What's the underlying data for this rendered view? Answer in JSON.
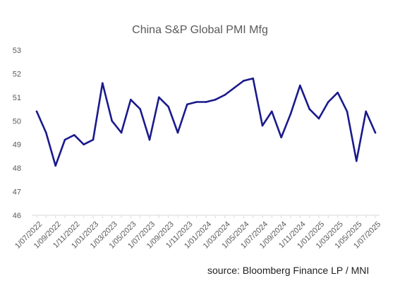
{
  "chart_data": {
    "type": "line",
    "title": "China S&P Global PMI Mfg",
    "source": "source: Bloomberg Finance LP / MNI",
    "xlabel": "",
    "ylabel": "",
    "ylim": [
      46,
      53
    ],
    "yticks": [
      46,
      47,
      48,
      49,
      50,
      51,
      52,
      53
    ],
    "grid": false,
    "x_tick_labels": [
      "1/07/2022",
      "1/09/2022",
      "1/11/2022",
      "1/01/2023",
      "1/03/2023",
      "1/05/2023",
      "1/07/2023",
      "1/09/2023",
      "1/11/2023",
      "1/01/2024",
      "1/03/2024",
      "1/05/2024",
      "1/07/2024",
      "1/09/2024",
      "1/11/2024",
      "1/01/2025",
      "1/03/2025",
      "1/05/2025",
      "1/07/2025"
    ],
    "series": [
      {
        "color": "#1a1a8c",
        "x": [
          "2022-07",
          "2022-08",
          "2022-09",
          "2022-10",
          "2022-11",
          "2022-12",
          "2023-01",
          "2023-02",
          "2023-03",
          "2023-04",
          "2023-05",
          "2023-06",
          "2023-07",
          "2023-08",
          "2023-09",
          "2023-10",
          "2023-11",
          "2023-12",
          "2024-01",
          "2024-02",
          "2024-03",
          "2024-04",
          "2024-05",
          "2024-06",
          "2024-07",
          "2024-08",
          "2024-09",
          "2024-10",
          "2024-11",
          "2024-12",
          "2025-01",
          "2025-02",
          "2025-03",
          "2025-04",
          "2025-05",
          "2025-06",
          "2025-07"
        ],
        "values": [
          50.4,
          49.5,
          48.1,
          49.2,
          49.4,
          49.0,
          49.2,
          51.6,
          50.0,
          49.5,
          50.9,
          50.5,
          49.2,
          51.0,
          50.6,
          49.5,
          50.7,
          50.8,
          50.8,
          50.9,
          51.1,
          51.4,
          51.7,
          51.8,
          49.8,
          50.4,
          49.3,
          50.3,
          51.5,
          50.5,
          50.1,
          50.8,
          51.2,
          50.4,
          48.3,
          50.4,
          49.5
        ]
      }
    ]
  }
}
